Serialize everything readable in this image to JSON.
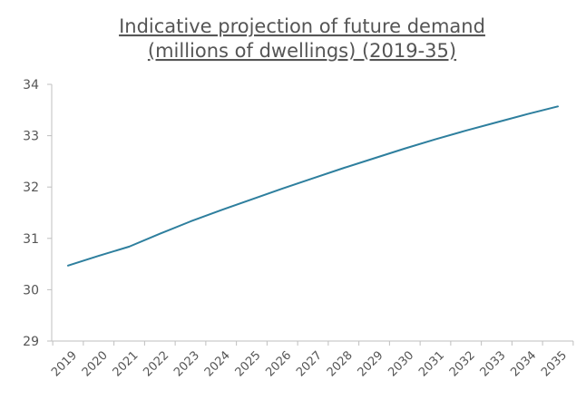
{
  "chart_data": {
    "type": "line",
    "title": [
      "Indicative projection of future demand",
      "(millions of dwellings) (2019-35)"
    ],
    "xlabel": "",
    "ylabel": "",
    "categories": [
      "2019",
      "2020",
      "2021",
      "2022",
      "2023",
      "2024",
      "2025",
      "2026",
      "2027",
      "2028",
      "2029",
      "2030",
      "2031",
      "2032",
      "2033",
      "2034",
      "2035"
    ],
    "yticks": [
      "29",
      "30",
      "31",
      "32",
      "33",
      "34"
    ],
    "ylim": [
      29,
      34
    ],
    "grid": false,
    "series": [
      {
        "color": "#2e7f9e",
        "values": [
          30.47,
          30.66,
          30.84,
          31.09,
          31.33,
          31.55,
          31.76,
          31.97,
          32.17,
          32.37,
          32.56,
          32.75,
          32.93,
          33.1,
          33.26,
          33.42,
          33.57
        ]
      }
    ]
  }
}
